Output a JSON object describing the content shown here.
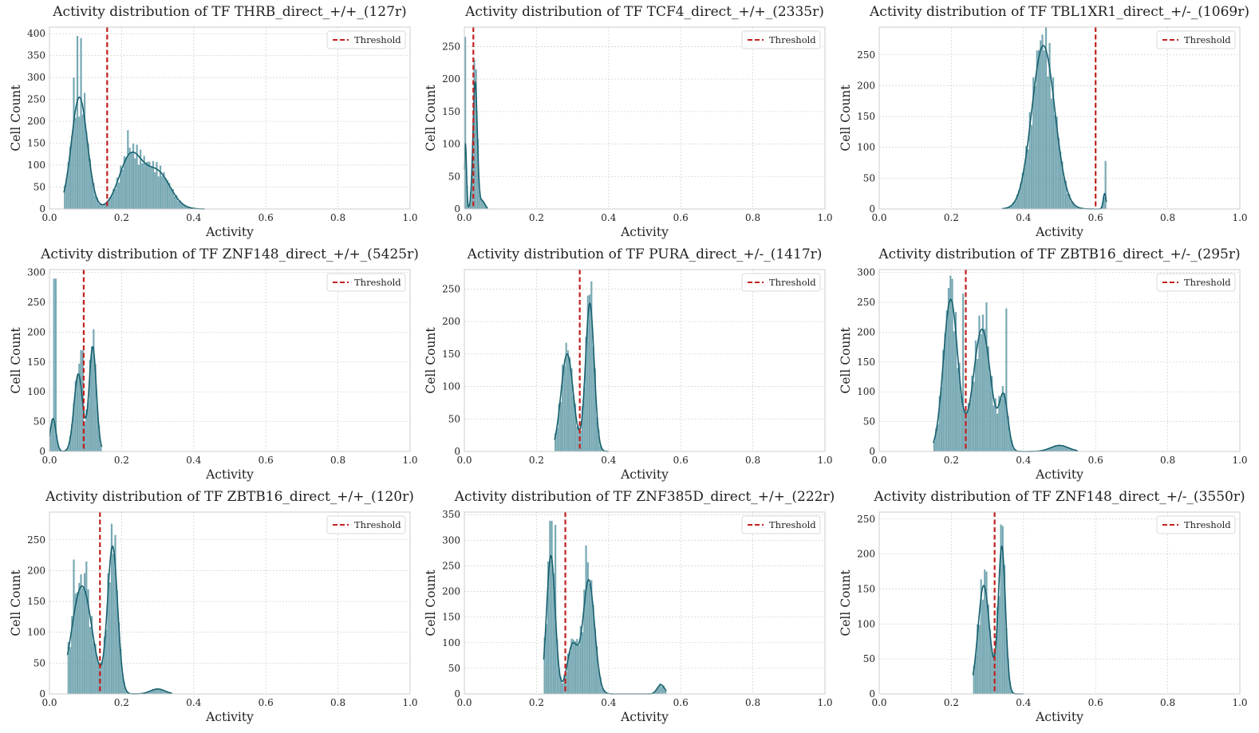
{
  "figure_colors": {
    "bar_fill": "#4f8f9e",
    "kde_line": "#17606e",
    "threshold": "#c0201e",
    "grid": "#d4d4d4",
    "frame": "#cccccc"
  },
  "chart_data": [
    {
      "type": "histogram",
      "title": "Activity distribution of TF THRB_direct_+/+_(127r)",
      "xlabel": "Activity",
      "ylabel": "Cell Count",
      "xlim": [
        0,
        1
      ],
      "ylim": [
        0,
        415
      ],
      "xticks": [
        "0.0",
        "0.2",
        "0.4",
        "0.6",
        "0.8",
        "1.0"
      ],
      "yticks": [
        "0",
        "50",
        "100",
        "150",
        "200",
        "250",
        "300",
        "350",
        "400"
      ],
      "ytick_values": [
        0,
        50,
        100,
        150,
        200,
        250,
        300,
        350,
        400
      ],
      "legend": "Threshold",
      "threshold": 0.16,
      "hist_range": [
        0.04,
        0.43
      ],
      "components": [
        {
          "mu": 0.083,
          "sigma": 0.022,
          "peak": 255
        },
        {
          "mu": 0.225,
          "sigma": 0.032,
          "peak": 120
        },
        {
          "mu": 0.3,
          "sigma": 0.035,
          "peak": 82
        }
      ],
      "bar_overrides": [
        {
          "x": 0.078,
          "value": 395
        },
        {
          "x": 0.088,
          "value": 390
        },
        {
          "x": 0.068,
          "value": 300
        },
        {
          "x": 0.098,
          "value": 265
        },
        {
          "x": 0.218,
          "value": 180
        }
      ]
    },
    {
      "type": "histogram",
      "title": "Activity distribution of TF TCF4_direct_+/+_(2335r)",
      "xlabel": "Activity",
      "ylabel": "Cell Count",
      "xlim": [
        0,
        1
      ],
      "ylim": [
        0,
        280
      ],
      "xticks": [
        "0.0",
        "0.2",
        "0.4",
        "0.6",
        "0.8",
        "1.0"
      ],
      "yticks": [
        "0",
        "50",
        "100",
        "150",
        "200",
        "250"
      ],
      "ytick_values": [
        0,
        50,
        100,
        150,
        200,
        250
      ],
      "legend": "Threshold",
      "threshold": 0.025,
      "hist_range": [
        0.0,
        0.065
      ],
      "components": [
        {
          "mu": 0.003,
          "sigma": 0.003,
          "peak": 100
        },
        {
          "mu": 0.03,
          "sigma": 0.006,
          "peak": 195
        },
        {
          "mu": 0.05,
          "sigma": 0.007,
          "peak": 12
        }
      ],
      "bar_overrides": [
        {
          "x": 0.002,
          "value": 265
        },
        {
          "x": 0.028,
          "value": 230
        },
        {
          "x": 0.032,
          "value": 215
        }
      ]
    },
    {
      "type": "histogram",
      "title": "Activity distribution of TF TBL1XR1_direct_+/-_(1069r)",
      "xlabel": "Activity",
      "ylabel": "Cell Count",
      "xlim": [
        0,
        1
      ],
      "ylim": [
        0,
        295
      ],
      "xticks": [
        "0.0",
        "0.2",
        "0.4",
        "0.6",
        "0.8",
        "1.0"
      ],
      "yticks": [
        "0",
        "50",
        "100",
        "150",
        "200",
        "250"
      ],
      "ytick_values": [
        0,
        50,
        100,
        150,
        200,
        250
      ],
      "legend": "Threshold",
      "threshold": 0.6,
      "hist_range": [
        0.34,
        0.63
      ],
      "components": [
        {
          "mu": 0.455,
          "sigma": 0.032,
          "peak": 265
        },
        {
          "mu": 0.625,
          "sigma": 0.004,
          "peak": 25
        }
      ],
      "bar_overrides": [
        {
          "x": 0.452,
          "value": 283
        },
        {
          "x": 0.628,
          "value": 78
        }
      ]
    },
    {
      "type": "histogram",
      "title": "Activity distribution of TF ZNF148_direct_+/+_(5425r)",
      "xlabel": "Activity",
      "ylabel": "Cell Count",
      "xlim": [
        0,
        1
      ],
      "ylim": [
        0,
        305
      ],
      "xticks": [
        "0.0",
        "0.2",
        "0.4",
        "0.6",
        "0.8",
        "1.0"
      ],
      "yticks": [
        "0",
        "50",
        "100",
        "150",
        "200",
        "250",
        "300"
      ],
      "ytick_values": [
        0,
        50,
        100,
        150,
        200,
        250,
        300
      ],
      "legend": "Threshold",
      "threshold": 0.095,
      "hist_range": [
        0.0,
        0.145
      ],
      "components": [
        {
          "mu": 0.01,
          "sigma": 0.008,
          "peak": 55
        },
        {
          "mu": 0.08,
          "sigma": 0.012,
          "peak": 130
        },
        {
          "mu": 0.12,
          "sigma": 0.01,
          "peak": 175
        }
      ],
      "bar_overrides": [
        {
          "x": 0.015,
          "value": 290
        },
        {
          "x": 0.09,
          "value": 170
        },
        {
          "x": 0.122,
          "value": 205
        }
      ]
    },
    {
      "type": "histogram",
      "title": "Activity distribution of TF PURA_direct_+/-_(1417r)",
      "xlabel": "Activity",
      "ylabel": "Cell Count",
      "xlim": [
        0,
        1
      ],
      "ylim": [
        0,
        280
      ],
      "xticks": [
        "0.0",
        "0.2",
        "0.4",
        "0.6",
        "0.8",
        "1.0"
      ],
      "yticks": [
        "0",
        "50",
        "100",
        "150",
        "200",
        "250"
      ],
      "ytick_values": [
        0,
        50,
        100,
        150,
        200,
        250
      ],
      "legend": "Threshold",
      "threshold": 0.32,
      "hist_range": [
        0.25,
        0.4
      ],
      "components": [
        {
          "mu": 0.285,
          "sigma": 0.017,
          "peak": 150
        },
        {
          "mu": 0.348,
          "sigma": 0.012,
          "peak": 228
        }
      ],
      "bar_overrides": [
        {
          "x": 0.352,
          "value": 262
        },
        {
          "x": 0.343,
          "value": 240
        }
      ]
    },
    {
      "type": "histogram",
      "title": "Activity distribution of TF ZBTB16_direct_+/-_(295r)",
      "xlabel": "Activity",
      "ylabel": "Cell Count",
      "xlim": [
        0,
        1
      ],
      "ylim": [
        0,
        305
      ],
      "xticks": [
        "0.0",
        "0.2",
        "0.4",
        "0.6",
        "0.8",
        "1.0"
      ],
      "yticks": [
        "0",
        "50",
        "100",
        "150",
        "200",
        "250",
        "300"
      ],
      "ytick_values": [
        0,
        50,
        100,
        150,
        200,
        250,
        300
      ],
      "legend": "Threshold",
      "threshold": 0.24,
      "hist_range": [
        0.15,
        0.55
      ],
      "components": [
        {
          "mu": 0.198,
          "sigma": 0.02,
          "peak": 255
        },
        {
          "mu": 0.285,
          "sigma": 0.024,
          "peak": 205
        },
        {
          "mu": 0.345,
          "sigma": 0.012,
          "peak": 88
        },
        {
          "mu": 0.5,
          "sigma": 0.025,
          "peak": 10
        }
      ],
      "bar_overrides": [
        {
          "x": 0.198,
          "value": 295
        },
        {
          "x": 0.298,
          "value": 250
        },
        {
          "x": 0.352,
          "value": 240
        },
        {
          "x": 0.232,
          "value": 265
        }
      ]
    },
    {
      "type": "histogram",
      "title": "Activity distribution of TF ZBTB16_direct_+/+_(120r)",
      "xlabel": "Activity",
      "ylabel": "Cell Count",
      "xlim": [
        0,
        1
      ],
      "ylim": [
        0,
        295
      ],
      "xticks": [
        "0.0",
        "0.2",
        "0.4",
        "0.6",
        "0.8",
        "1.0"
      ],
      "yticks": [
        "0",
        "50",
        "100",
        "150",
        "200",
        "250"
      ],
      "ytick_values": [
        0,
        50,
        100,
        150,
        200,
        250
      ],
      "legend": "Threshold",
      "threshold": 0.14,
      "hist_range": [
        0.05,
        0.34
      ],
      "components": [
        {
          "mu": 0.09,
          "sigma": 0.028,
          "peak": 175
        },
        {
          "mu": 0.175,
          "sigma": 0.014,
          "peak": 238
        },
        {
          "mu": 0.3,
          "sigma": 0.02,
          "peak": 8
        }
      ],
      "bar_overrides": [
        {
          "x": 0.068,
          "value": 218
        },
        {
          "x": 0.182,
          "value": 258
        },
        {
          "x": 0.102,
          "value": 215
        }
      ]
    },
    {
      "type": "histogram",
      "title": "Activity distribution of TF ZNF385D_direct_+/+_(222r)",
      "xlabel": "Activity",
      "ylabel": "Cell Count",
      "xlim": [
        0,
        1
      ],
      "ylim": [
        0,
        355
      ],
      "xticks": [
        "0.0",
        "0.2",
        "0.4",
        "0.6",
        "0.8",
        "1.0"
      ],
      "yticks": [
        "0",
        "50",
        "100",
        "150",
        "200",
        "250",
        "300",
        "350"
      ],
      "ytick_values": [
        0,
        50,
        100,
        150,
        200,
        250,
        300,
        350
      ],
      "legend": "Threshold",
      "threshold": 0.28,
      "hist_range": [
        0.22,
        0.56
      ],
      "components": [
        {
          "mu": 0.24,
          "sigma": 0.012,
          "peak": 270
        },
        {
          "mu": 0.3,
          "sigma": 0.015,
          "peak": 95
        },
        {
          "mu": 0.345,
          "sigma": 0.016,
          "peak": 222
        },
        {
          "mu": 0.545,
          "sigma": 0.01,
          "peak": 18
        }
      ],
      "bar_overrides": [
        {
          "x": 0.24,
          "value": 338
        },
        {
          "x": 0.252,
          "value": 330
        },
        {
          "x": 0.338,
          "value": 290
        }
      ]
    },
    {
      "type": "histogram",
      "title": "Activity distribution of TF ZNF148_direct_+/-_(3550r)",
      "xlabel": "Activity",
      "ylabel": "Cell Count",
      "xlim": [
        0,
        1
      ],
      "ylim": [
        0,
        260
      ],
      "xticks": [
        "0.0",
        "0.2",
        "0.4",
        "0.6",
        "0.8",
        "1.0"
      ],
      "yticks": [
        "0",
        "50",
        "100",
        "150",
        "200",
        "250"
      ],
      "ytick_values": [
        0,
        50,
        100,
        150,
        200,
        250
      ],
      "legend": "Threshold",
      "threshold": 0.32,
      "hist_range": [
        0.26,
        0.4
      ],
      "components": [
        {
          "mu": 0.29,
          "sigma": 0.016,
          "peak": 155
        },
        {
          "mu": 0.34,
          "sigma": 0.01,
          "peak": 210
        }
      ],
      "bar_overrides": [
        {
          "x": 0.342,
          "value": 240
        },
        {
          "x": 0.298,
          "value": 175
        }
      ]
    }
  ]
}
